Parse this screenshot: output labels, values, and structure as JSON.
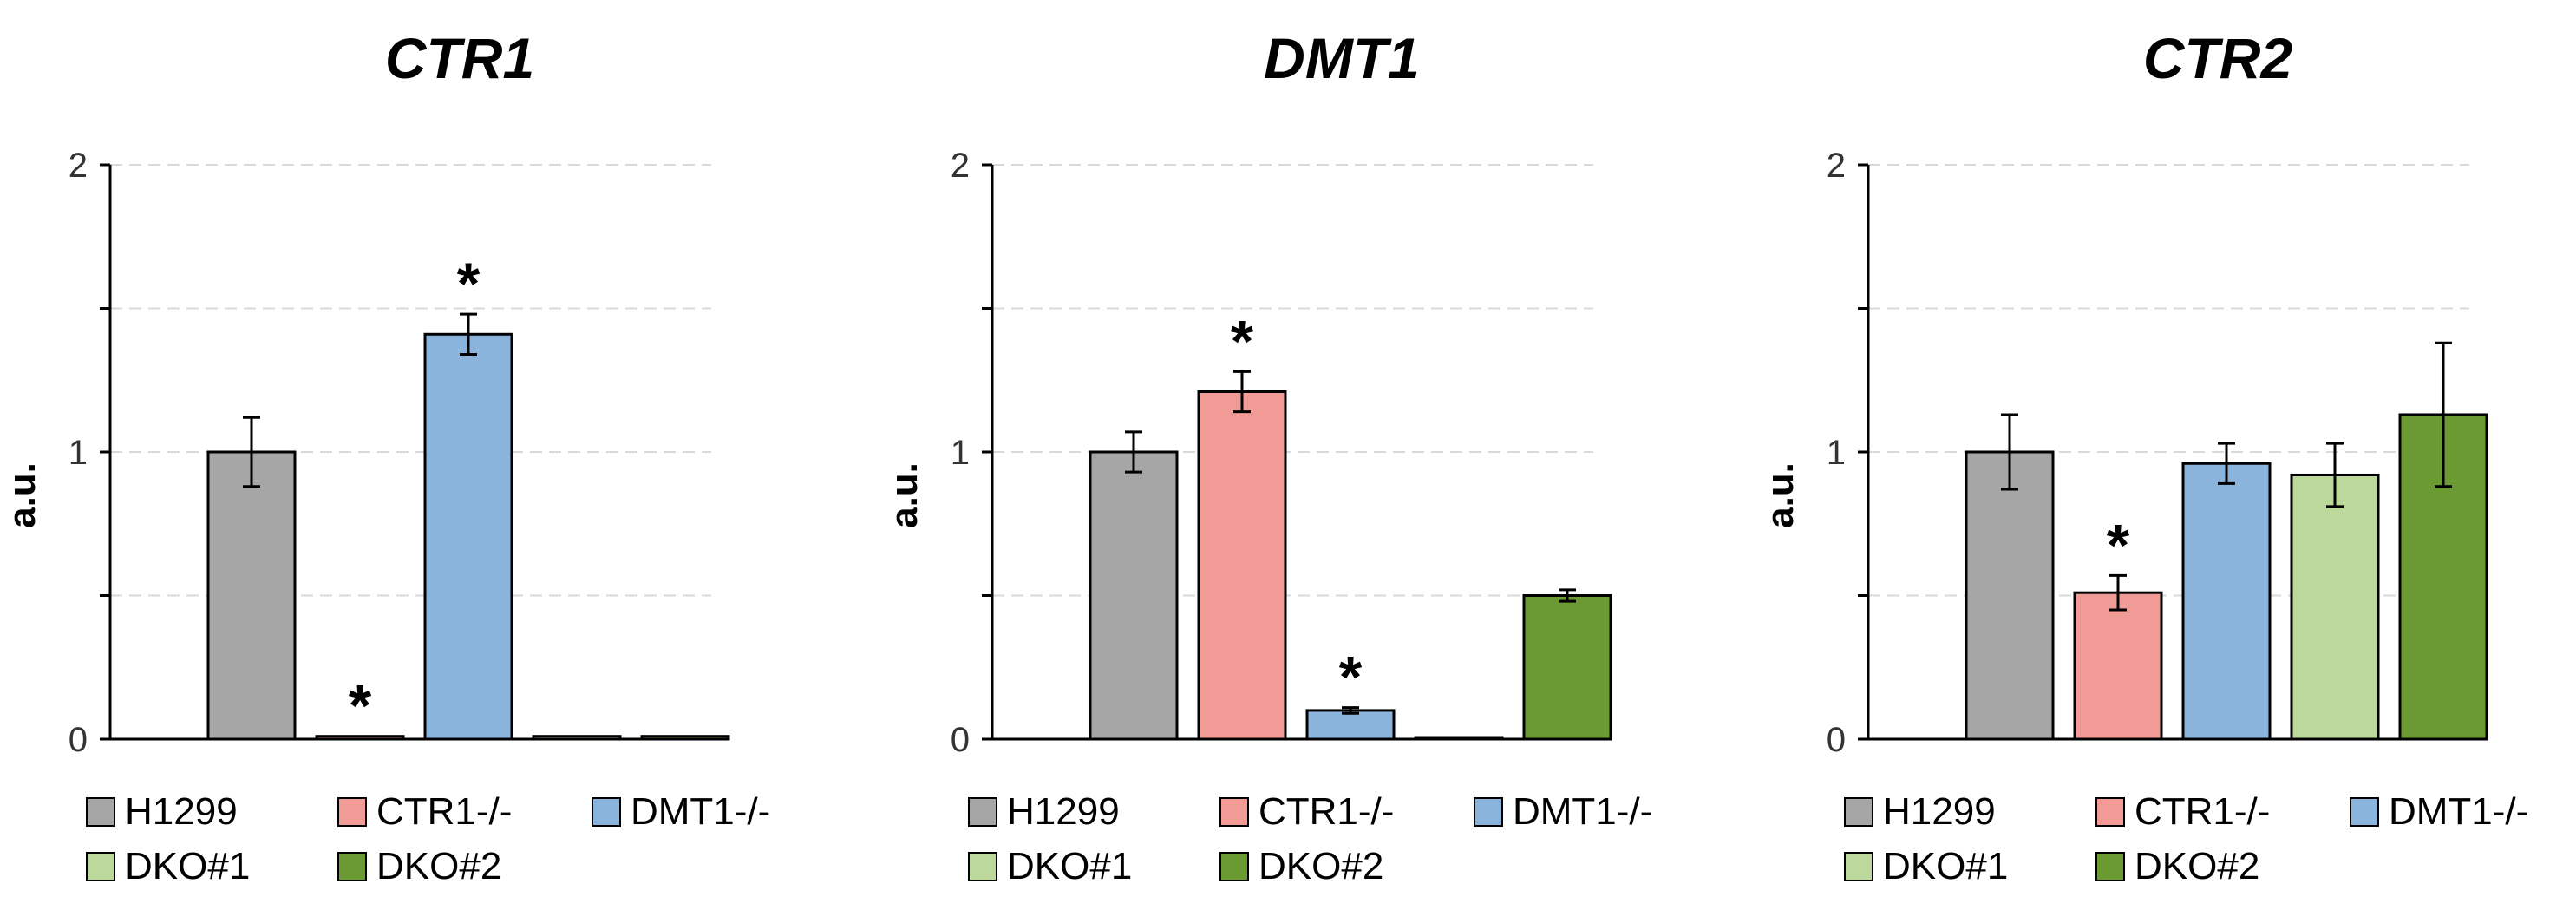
{
  "colors": {
    "H1299": "#a6a6a6",
    "CTR1-/-": "#f09b96",
    "DMT1-/-": "#8ab4dc",
    "DKO#1": "#bcd99b",
    "DKO#2": "#6b9a33",
    "axis": "#000000",
    "grid": "#d9d9d9"
  },
  "legend": {
    "items": [
      "H1299",
      "CTR1-/-",
      "DMT1-/-",
      "DKO#1",
      "DKO#2"
    ]
  },
  "chart_data": [
    {
      "type": "bar",
      "title": "CTR1",
      "ylabel": "a.u.",
      "ylim": [
        0,
        2
      ],
      "yticks": [
        {
          "value": 0,
          "label": "0"
        },
        {
          "value": 0.5,
          "label": ""
        },
        {
          "value": 1,
          "label": "1"
        },
        {
          "value": 1.5,
          "label": ""
        },
        {
          "value": 2,
          "label": "2"
        }
      ],
      "grid": true,
      "categories": [
        "H1299",
        "CTR1-/-",
        "DMT1-/-",
        "DKO#1",
        "DKO#2"
      ],
      "values": [
        1.0,
        0.01,
        1.41,
        0.01,
        0.01
      ],
      "errors": [
        0.12,
        0.0,
        0.07,
        0.0,
        0.0
      ],
      "annotations": [
        "",
        "*",
        "*",
        "",
        ""
      ]
    },
    {
      "type": "bar",
      "title": "DMT1",
      "ylabel": "a.u.",
      "ylim": [
        0,
        2
      ],
      "yticks": [
        {
          "value": 0,
          "label": "0"
        },
        {
          "value": 0.5,
          "label": ""
        },
        {
          "value": 1,
          "label": "1"
        },
        {
          "value": 1.5,
          "label": ""
        },
        {
          "value": 2,
          "label": "2"
        }
      ],
      "grid": true,
      "categories": [
        "H1299",
        "CTR1-/-",
        "DMT1-/-",
        "DKO#1",
        "DKO#2"
      ],
      "values": [
        1.0,
        1.21,
        0.1,
        0.0,
        0.5
      ],
      "errors": [
        0.07,
        0.07,
        0.01,
        0.0,
        0.02
      ],
      "annotations": [
        "",
        "*",
        "*",
        "",
        ""
      ]
    },
    {
      "type": "bar",
      "title": "CTR2",
      "ylabel": "a.u.",
      "ylim": [
        0,
        2
      ],
      "yticks": [
        {
          "value": 0,
          "label": "0"
        },
        {
          "value": 0.5,
          "label": ""
        },
        {
          "value": 1,
          "label": "1"
        },
        {
          "value": 1.5,
          "label": ""
        },
        {
          "value": 2,
          "label": "2"
        }
      ],
      "grid": true,
      "categories": [
        "H1299",
        "CTR1-/-",
        "DMT1-/-",
        "DKO#1",
        "DKO#2"
      ],
      "values": [
        1.0,
        0.51,
        0.96,
        0.92,
        1.13
      ],
      "errors": [
        0.13,
        0.06,
        0.07,
        0.11,
        0.25
      ],
      "annotations": [
        "",
        "*",
        "",
        "",
        ""
      ]
    }
  ]
}
